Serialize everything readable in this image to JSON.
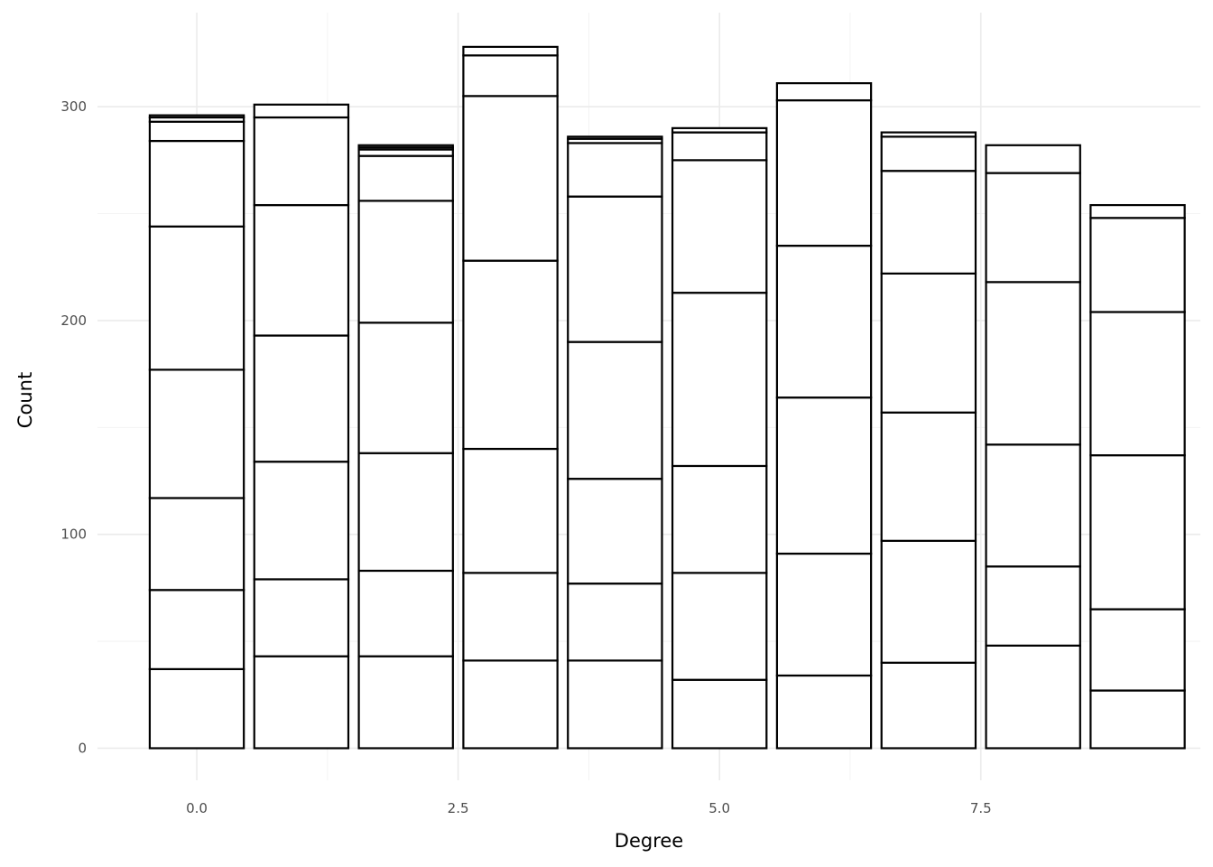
{
  "chart_data": {
    "type": "bar",
    "stacked": true,
    "title": "",
    "xlabel": "Degree",
    "ylabel": "Count",
    "x": [
      0,
      1,
      2,
      3,
      4,
      5,
      6,
      7,
      8,
      9
    ],
    "x_ticks": [
      "0.0",
      "2.5",
      "5.0",
      "7.5"
    ],
    "x_tick_values": [
      0,
      2.5,
      5,
      7.5
    ],
    "y_ticks": [
      "0",
      "100",
      "200",
      "300"
    ],
    "y_tick_values": [
      0,
      100,
      200,
      300
    ],
    "xlim": [
      -0.95,
      9.6
    ],
    "ylim": [
      -15,
      344
    ],
    "grid": true,
    "fill_color": "#ffffff",
    "stroke_color": "#000000",
    "stack_boundaries": [
      [
        0,
        37,
        74,
        117,
        177,
        244,
        284,
        293,
        295,
        296
      ],
      [
        0,
        43,
        79,
        134,
        193,
        254,
        295,
        301
      ],
      [
        0,
        43,
        83,
        138,
        199,
        256,
        277,
        280,
        281,
        282
      ],
      [
        0,
        41,
        82,
        140,
        228,
        305,
        324,
        328
      ],
      [
        0,
        41,
        77,
        126,
        190,
        258,
        283,
        285,
        286
      ],
      [
        0,
        32,
        82,
        132,
        213,
        275,
        288,
        290
      ],
      [
        0,
        34,
        91,
        164,
        235,
        303,
        311
      ],
      [
        0,
        40,
        97,
        157,
        222,
        270,
        286,
        288
      ],
      [
        0,
        48,
        85,
        142,
        218,
        269,
        282
      ],
      [
        0,
        27,
        65,
        137,
        204,
        248,
        254
      ]
    ]
  }
}
